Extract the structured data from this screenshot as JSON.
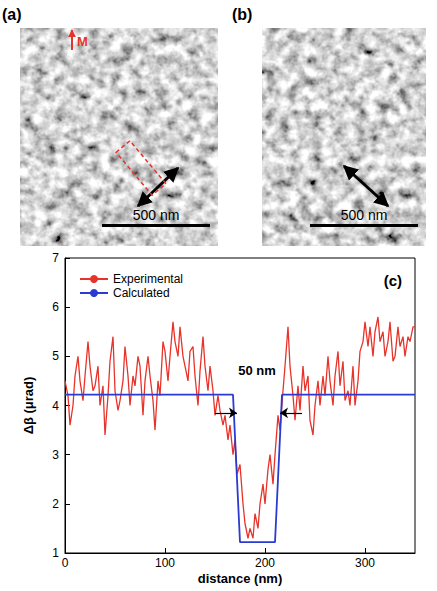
{
  "panels": [
    {
      "label": "(a)",
      "annotation": "M",
      "scale_bar": "500 nm"
    },
    {
      "label": "(b)",
      "scale_bar": "500 nm"
    }
  ],
  "chart_data": {
    "type": "line",
    "panel_label": "(c)",
    "x_label": "distance (nm)",
    "y_label": "Δβ (μrad)",
    "xlim": [
      0,
      350
    ],
    "xticks": [
      0,
      100,
      200,
      300
    ],
    "ylim": [
      1,
      7
    ],
    "yticks": [
      1,
      2,
      3,
      4,
      5,
      6,
      7
    ],
    "legend": "upper left",
    "grid": false,
    "series": [
      {
        "name": "Experimental",
        "color": "#e8332a",
        "x": [
          0,
          3,
          5,
          8,
          10,
          13,
          15,
          18,
          20,
          23,
          25,
          28,
          30,
          33,
          35,
          38,
          40,
          43,
          45,
          48,
          50,
          53,
          55,
          58,
          60,
          63,
          65,
          68,
          70,
          73,
          75,
          78,
          80,
          83,
          85,
          88,
          90,
          93,
          95,
          98,
          100,
          103,
          105,
          108,
          110,
          113,
          115,
          118,
          120,
          123,
          125,
          128,
          130,
          133,
          135,
          138,
          140,
          143,
          145,
          148,
          150,
          153,
          155,
          158,
          160,
          163,
          165,
          168,
          170,
          172,
          175,
          178,
          180,
          183,
          185,
          188,
          190,
          193,
          195,
          198,
          200,
          203,
          205,
          208,
          210,
          213,
          215,
          218,
          220,
          223,
          225,
          228,
          230,
          233,
          235,
          238,
          240,
          243,
          245,
          248,
          250,
          253,
          255,
          258,
          260,
          263,
          265,
          268,
          270,
          273,
          275,
          278,
          280,
          283,
          285,
          288,
          290,
          293,
          295,
          298,
          300,
          303,
          305,
          308,
          310,
          313,
          315,
          318,
          320,
          323,
          325,
          328,
          330,
          333,
          335,
          338,
          340,
          343,
          345,
          348,
          350
        ],
        "values": [
          4.5,
          4.2,
          3.6,
          4.0,
          4.6,
          5.0,
          4.5,
          4.1,
          4.6,
          5.3,
          4.8,
          4.3,
          4.4,
          4.8,
          4.0,
          4.4,
          3.4,
          4.2,
          4.9,
          5.4,
          4.3,
          3.9,
          4.1,
          4.5,
          5.2,
          4.6,
          4.0,
          4.6,
          4.4,
          5.0,
          4.8,
          3.8,
          4.5,
          5.0,
          4.6,
          4.1,
          3.5,
          4.5,
          4.2,
          5.3,
          5.1,
          4.5,
          5.0,
          5.7,
          5.3,
          5.0,
          5.6,
          5.0,
          4.8,
          4.5,
          5.1,
          5.2,
          4.6,
          4.0,
          4.7,
          5.4,
          4.8,
          4.3,
          4.8,
          4.3,
          3.8,
          4.2,
          3.9,
          3.6,
          3.8,
          3.3,
          3.6,
          3.0,
          3.3,
          2.6,
          2.8,
          2.0,
          1.6,
          1.3,
          1.5,
          1.3,
          1.8,
          1.5,
          2.0,
          2.4,
          2.0,
          2.7,
          3.0,
          2.4,
          3.0,
          3.8,
          3.5,
          4.3,
          4.8,
          5.6,
          4.8,
          4.2,
          3.7,
          4.4,
          3.9,
          4.8,
          4.3,
          4.6,
          3.7,
          3.4,
          4.0,
          4.5,
          4.0,
          4.6,
          4.2,
          5.0,
          4.5,
          4.0,
          4.6,
          5.1,
          4.4,
          4.9,
          4.1,
          4.3,
          4.0,
          4.8,
          4.0,
          4.5,
          5.1,
          5.3,
          5.7,
          5.2,
          5.6,
          5.0,
          5.5,
          5.8,
          5.3,
          5.5,
          5.0,
          5.3,
          5.7,
          4.9,
          5.0,
          5.6,
          5.2,
          5.4,
          5.0,
          5.4,
          5.3,
          5.6,
          5.6
        ]
      },
      {
        "name": "Calculated",
        "color": "#2b3bd1",
        "x": [
          0,
          168,
          175,
          210,
          217,
          350
        ],
        "values": [
          4.22,
          4.22,
          1.22,
          1.22,
          4.22,
          4.22
        ]
      }
    ],
    "annotation": {
      "text": "50 nm",
      "x": 192,
      "y": 4.72,
      "arrow_y": 3.85,
      "arrow_from": [
        150,
        237
      ],
      "arrow_to": [
        172,
        215
      ]
    }
  }
}
